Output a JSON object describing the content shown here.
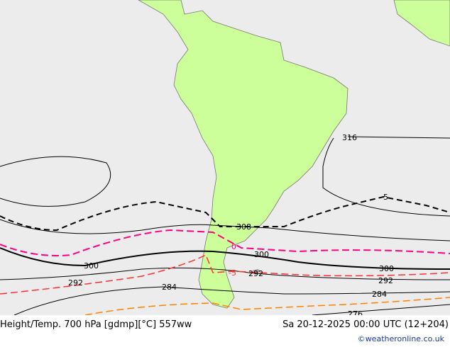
{
  "map": {
    "title": "Height/Temp. 700 hPa [gdmp][°C] 557ww",
    "valid_time": "Sa 20-12-2025 00:00 UTC (12+204)",
    "credit": "©weatheronline.co.uk",
    "height_labels": [
      "316",
      "308",
      "300",
      "300",
      "300",
      "292",
      "292",
      "292",
      "284",
      "284",
      "276"
    ],
    "temp_labels": [
      "5",
      "0",
      "-5"
    ],
    "colors": {
      "land": "#ccff99",
      "sea": "#ececec",
      "height": "#000000",
      "temp_0": "#ff0080",
      "temp_neg5": "#ff3030",
      "temp_5": "#000000",
      "temp_neg10": "#ff8000"
    }
  }
}
